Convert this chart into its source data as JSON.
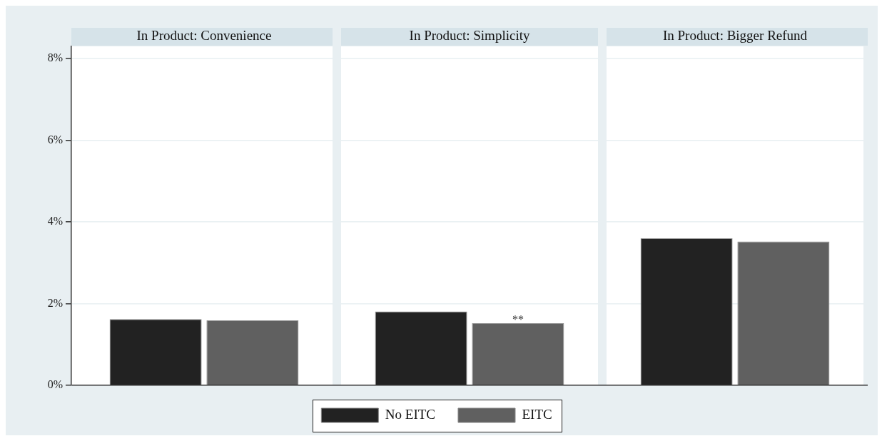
{
  "chart_data": {
    "type": "bar",
    "categories": [
      "In Product: Convenience",
      "In Product: Simplicity",
      "In Product: Bigger Refund"
    ],
    "series": [
      {
        "name": "No EITC",
        "color": "#222222",
        "values": [
          1.62,
          1.81,
          3.6
        ]
      },
      {
        "name": "EITC",
        "color": "#606060",
        "values": [
          1.59,
          1.52,
          3.52
        ]
      }
    ],
    "ylim": [
      0,
      8.3
    ],
    "yticks": [
      {
        "value": 0,
        "label": "0%"
      },
      {
        "value": 2,
        "label": "2%"
      },
      {
        "value": 4,
        "label": "4%"
      },
      {
        "value": 6,
        "label": "6%"
      },
      {
        "value": 8,
        "label": "8%"
      }
    ],
    "grid": "y",
    "legend": "bottom",
    "annotations": [
      {
        "text": "**",
        "y": 1.52
      }
    ]
  }
}
